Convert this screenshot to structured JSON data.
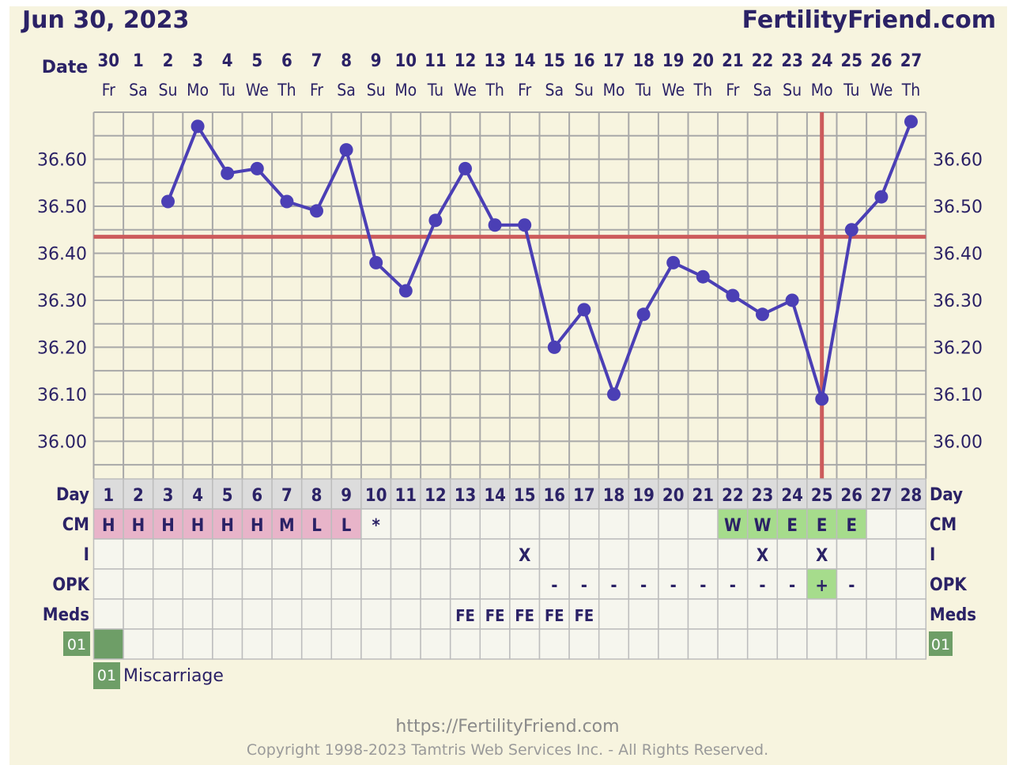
{
  "header": {
    "date": "Jun 30, 2023",
    "site": "FertilityFriend.com"
  },
  "footer": {
    "url": "https://FertilityFriend.com",
    "copyright": "Copyright 1998-2023 Tamtris Web Services Inc. - All Rights Reserved."
  },
  "legend": {
    "code": "01",
    "label": "Miscarriage"
  },
  "colors": {
    "line": "#4b3fb5",
    "coverline": "#cc5b5b",
    "grid": "#a8a8a8",
    "label": "#2b2266",
    "cm_dry": "#e8b4c9",
    "cm_fertile": "#a6dc8c",
    "opk_positive": "#a6dc8c",
    "day_header": "#dcdcdc",
    "marker": "#6e9e67"
  },
  "chart_data": {
    "type": "line",
    "ylim": [
      35.92,
      36.7
    ],
    "y_ticks": [
      "36.00",
      "36.10",
      "36.20",
      "36.30",
      "36.40",
      "36.50",
      "36.60"
    ],
    "coverline": 36.435,
    "ovulation_cycle_day": 25,
    "row_label_date": "Date",
    "dates": [
      "30",
      "1",
      "2",
      "3",
      "4",
      "5",
      "6",
      "7",
      "8",
      "9",
      "10",
      "11",
      "12",
      "13",
      "14",
      "15",
      "16",
      "17",
      "18",
      "19",
      "20",
      "21",
      "22",
      "23",
      "24",
      "25",
      "26",
      "27"
    ],
    "weekdays": [
      "Fr",
      "Sa",
      "Su",
      "Mo",
      "Tu",
      "We",
      "Th",
      "Fr",
      "Sa",
      "Su",
      "Mo",
      "Tu",
      "We",
      "Th",
      "Fr",
      "Sa",
      "Su",
      "Mo",
      "Tu",
      "We",
      "Th",
      "Fr",
      "Sa",
      "Su",
      "Mo",
      "Tu",
      "We",
      "Th"
    ],
    "series": [
      {
        "values": [
          null,
          null,
          36.51,
          36.67,
          36.57,
          36.58,
          36.51,
          36.49,
          36.62,
          36.38,
          36.32,
          36.47,
          36.58,
          36.46,
          36.46,
          36.2,
          36.28,
          36.1,
          36.27,
          36.38,
          36.35,
          36.31,
          36.27,
          36.3,
          36.09,
          36.45,
          36.52,
          36.68
        ]
      }
    ],
    "rows": [
      {
        "label": "Day",
        "values": [
          "1",
          "2",
          "3",
          "4",
          "5",
          "6",
          "7",
          "8",
          "9",
          "10",
          "11",
          "12",
          "13",
          "14",
          "15",
          "16",
          "17",
          "18",
          "19",
          "20",
          "21",
          "22",
          "23",
          "24",
          "25",
          "26",
          "27",
          "28"
        ]
      },
      {
        "label": "CM",
        "values": [
          "H",
          "H",
          "H",
          "H",
          "H",
          "H",
          "M",
          "L",
          "L",
          "*",
          "",
          "",
          "",
          "",
          "",
          "",
          "",
          "",
          "",
          "",
          "",
          "W",
          "W",
          "E",
          "E",
          "E",
          "",
          ""
        ]
      },
      {
        "label": "I",
        "values": [
          "",
          "",
          "",
          "",
          "",
          "",
          "",
          "",
          "",
          "",
          "",
          "",
          "",
          "",
          "X",
          "",
          "",
          "",
          "",
          "",
          "",
          "",
          "X",
          "",
          "X",
          "",
          "",
          ""
        ]
      },
      {
        "label": "OPK",
        "values": [
          "",
          "",
          "",
          "",
          "",
          "",
          "",
          "",
          "",
          "",
          "",
          "",
          "",
          "",
          "",
          "-",
          "-",
          "-",
          "-",
          "-",
          "-",
          "-",
          "-",
          "-",
          "+",
          "-",
          "",
          ""
        ]
      },
      {
        "label": "Meds",
        "values": [
          "",
          "",
          "",
          "",
          "",
          "",
          "",
          "",
          "",
          "",
          "",
          "",
          "FE",
          "FE",
          "FE",
          "FE",
          "FE",
          "",
          "",
          "",
          "",
          "",
          "",
          "",
          "",
          "",
          "",
          ""
        ]
      },
      {
        "label": "01",
        "values": [
          "",
          "",
          "",
          "",
          "",
          "",
          "",
          "",
          "",
          "",
          "",
          "",
          "",
          "",
          "",
          "",
          "",
          "",
          "",
          "",
          "",
          "",
          "",
          "",
          "",
          "",
          "",
          ""
        ],
        "marked_cycle_days": [
          1
        ]
      }
    ]
  }
}
